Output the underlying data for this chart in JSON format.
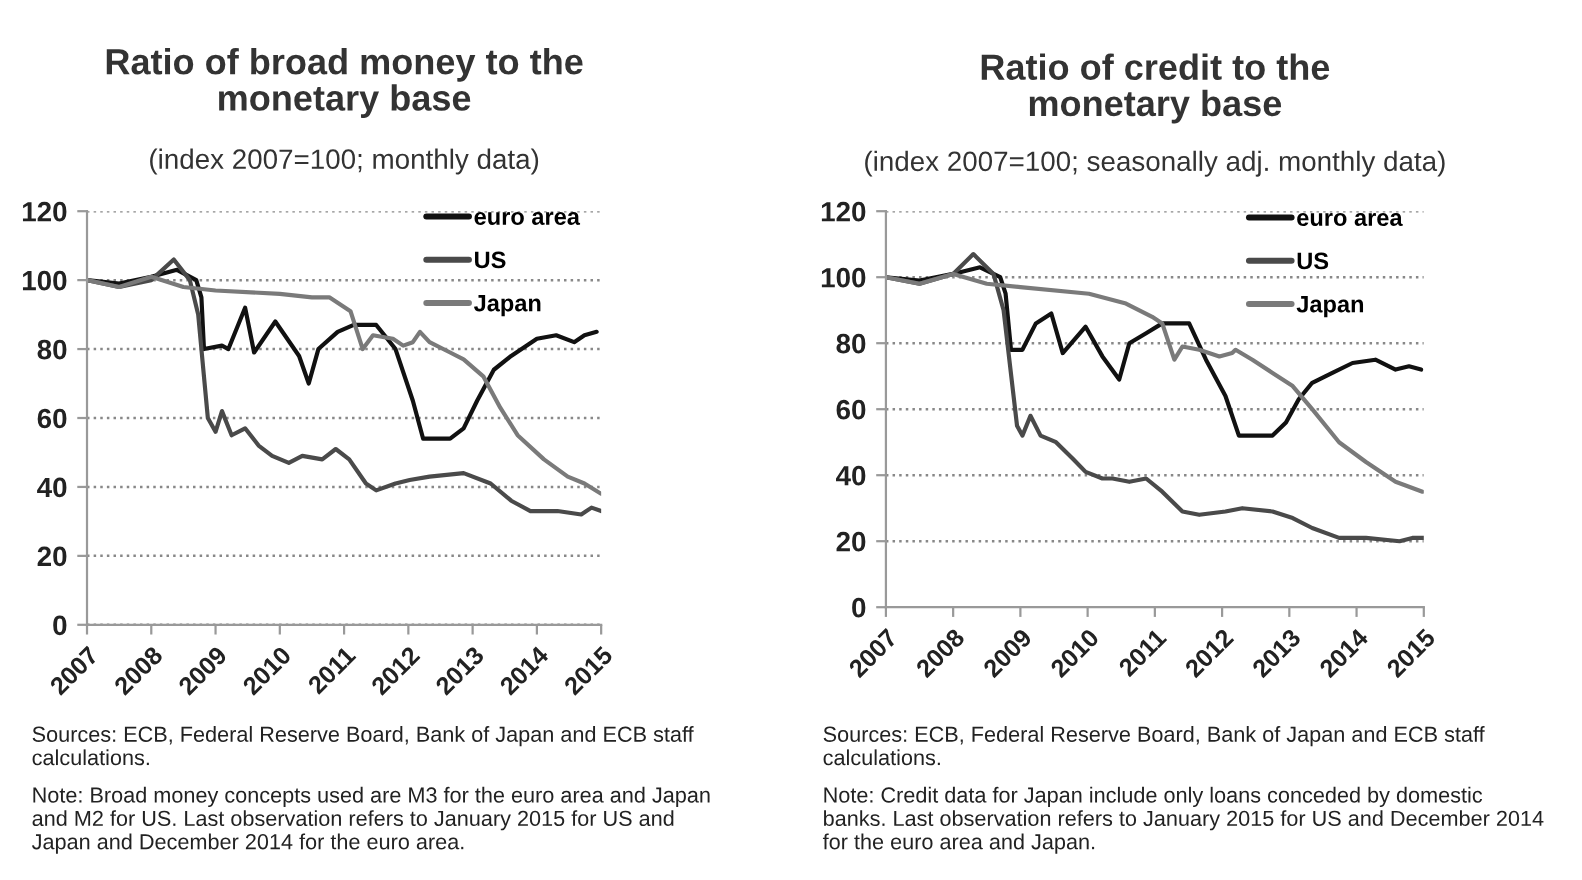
{
  "chart_data": [
    {
      "type": "line",
      "title": "Ratio of broad money to the monetary base",
      "subtitle": "(index 2007=100; monthly data)",
      "annotations": [
        "Sources: ECB, Federal Reserve Board, Bank of Japan and ECB staff calculations.",
        "Note: Broad money concepts used are M3 for the euro area and Japan and M2 for US. Last observation refers to January 2015 for US and Japan and December 2014 for the euro area."
      ],
      "xlim": [
        2007,
        2015
      ],
      "xticks": [
        2007,
        2008,
        2009,
        2010,
        2011,
        2012,
        2013,
        2014,
        2015
      ],
      "ylim": [
        0,
        120
      ],
      "yticks": [
        0,
        20,
        40,
        60,
        80,
        100,
        120
      ],
      "grid": "y",
      "legend": "top right",
      "series": [
        {
          "name": "euro area",
          "color": "#111111",
          "x": [
            2007,
            2007.5,
            2008,
            2008.4,
            2008.7,
            2008.78,
            2008.82,
            2009.1,
            2009.2,
            2009.46,
            2009.6,
            2009.93,
            2010.3,
            2010.45,
            2010.6,
            2010.9,
            2011.15,
            2011.5,
            2011.8,
            2012.07,
            2012.23,
            2012.65,
            2012.86,
            2013.07,
            2013.33,
            2013.6,
            2014.0,
            2014.3,
            2014.58,
            2014.74,
            2014.93
          ],
          "values": [
            100,
            99,
            101,
            103,
            100,
            95,
            80,
            81,
            80,
            92,
            79,
            88,
            78,
            70,
            80,
            85,
            87,
            87,
            80,
            65,
            54,
            54,
            57,
            65,
            74,
            78,
            83,
            84,
            82,
            84,
            85
          ]
        },
        {
          "name": "US",
          "color": "#4a4a4a",
          "x": [
            2007,
            2007.5,
            2008,
            2008.35,
            2008.6,
            2008.73,
            2008.88,
            2009.0,
            2009.1,
            2009.25,
            2009.46,
            2009.67,
            2009.88,
            2010.14,
            2010.35,
            2010.66,
            2010.87,
            2011.08,
            2011.34,
            2011.5,
            2011.8,
            2012.02,
            2012.33,
            2012.86,
            2013.28,
            2013.6,
            2013.9,
            2014.32,
            2014.69,
            2014.85,
            2015.0
          ],
          "values": [
            100,
            98,
            100,
            106,
            100,
            90,
            60,
            56,
            62,
            55,
            57,
            52,
            49,
            47,
            49,
            48,
            51,
            48,
            41,
            39,
            41,
            42,
            43,
            44,
            41,
            36,
            33,
            33,
            32,
            34,
            33
          ]
        },
        {
          "name": "Japan",
          "color": "#7a7a7a",
          "x": [
            2007,
            2007.5,
            2008,
            2008.5,
            2009,
            2010,
            2010.5,
            2010.77,
            2011.1,
            2011.29,
            2011.45,
            2011.76,
            2011.92,
            2012.07,
            2012.18,
            2012.33,
            2012.65,
            2012.86,
            2013.17,
            2013.43,
            2013.7,
            2014.11,
            2014.48,
            2014.74,
            2015.0
          ],
          "values": [
            100,
            98,
            101,
            98,
            97,
            96,
            95,
            95,
            91,
            80,
            84,
            83,
            81,
            82,
            85,
            82,
            79,
            77,
            72,
            63,
            55,
            48,
            43,
            41,
            38
          ]
        }
      ]
    },
    {
      "type": "line",
      "title": "Ratio of credit to the monetary base",
      "subtitle": "(index 2007=100; seasonally adj. monthly data)",
      "annotations": [
        "Sources: ECB, Federal Reserve Board, Bank of Japan and ECB staff calculations.",
        "Note: Credit data for Japan include only loans conceded by domestic banks. Last observation refers to January 2015 for US and December 2014 for the euro area and Japan."
      ],
      "xlim": [
        2007,
        2015
      ],
      "xticks": [
        2007,
        2008,
        2009,
        2010,
        2011,
        2012,
        2013,
        2014,
        2015
      ],
      "ylim": [
        0,
        120
      ],
      "yticks": [
        0,
        20,
        40,
        60,
        80,
        100,
        120
      ],
      "grid": "y",
      "legend": "top right",
      "series": [
        {
          "name": "euro area",
          "color": "#111111",
          "x": [
            2007,
            2007.5,
            2008,
            2008.4,
            2008.7,
            2008.78,
            2008.86,
            2009.03,
            2009.23,
            2009.46,
            2009.63,
            2009.97,
            2010.22,
            2010.47,
            2010.62,
            2010.87,
            2011.11,
            2011.51,
            2011.76,
            2012.05,
            2012.25,
            2012.75,
            2012.95,
            2013.14,
            2013.34,
            2013.64,
            2013.94,
            2014.28,
            2014.58,
            2014.78,
            2014.96
          ],
          "values": [
            100,
            99,
            101,
            103,
            100,
            95,
            78,
            78,
            86,
            89,
            77,
            85,
            76,
            69,
            80,
            83,
            86,
            86,
            75,
            64,
            52,
            52,
            56,
            63,
            68,
            71,
            74,
            75,
            72,
            73,
            72
          ]
        },
        {
          "name": "US",
          "color": "#4a4a4a",
          "x": [
            2007,
            2007.5,
            2008,
            2008.3,
            2008.6,
            2008.75,
            2008.95,
            2009.03,
            2009.15,
            2009.3,
            2009.53,
            2009.78,
            2009.97,
            2010.22,
            2010.37,
            2010.62,
            2010.87,
            2011.11,
            2011.41,
            2011.66,
            2012.05,
            2012.3,
            2012.75,
            2013.05,
            2013.34,
            2013.74,
            2014.14,
            2014.64,
            2014.83,
            2015.0
          ],
          "values": [
            100,
            98,
            101,
            107,
            101,
            90,
            55,
            52,
            58,
            52,
            50,
            45,
            41,
            39,
            39,
            38,
            39,
            35,
            29,
            28,
            29,
            30,
            29,
            27,
            24,
            21,
            21,
            20,
            21,
            21
          ]
        },
        {
          "name": "Japan",
          "color": "#7a7a7a",
          "x": [
            2007,
            2007.5,
            2008,
            2008.5,
            2009,
            2010.02,
            2010.57,
            2010.96,
            2011.11,
            2011.29,
            2011.41,
            2011.66,
            2011.96,
            2012.15,
            2012.2,
            2012.45,
            2012.75,
            2013.05,
            2013.34,
            2013.74,
            2014.14,
            2014.58,
            2014.98
          ],
          "values": [
            100,
            98,
            101,
            98,
            97,
            95,
            92,
            88,
            86,
            75,
            79,
            78,
            76,
            77,
            78,
            75,
            71,
            67,
            60,
            50,
            44,
            38,
            35
          ]
        }
      ]
    }
  ]
}
